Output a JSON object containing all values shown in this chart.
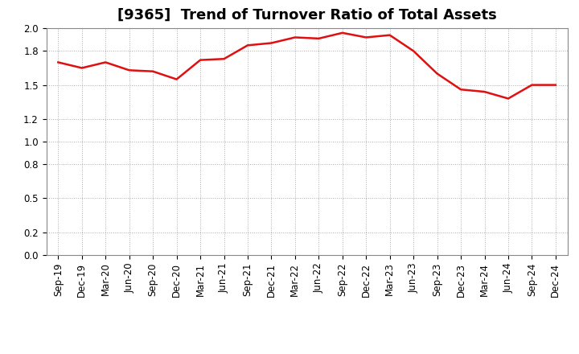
{
  "title": "[9365]  Trend of Turnover Ratio of Total Assets",
  "labels": [
    "Sep-19",
    "Dec-19",
    "Mar-20",
    "Jun-20",
    "Sep-20",
    "Dec-20",
    "Mar-21",
    "Jun-21",
    "Sep-21",
    "Dec-21",
    "Mar-22",
    "Jun-22",
    "Sep-22",
    "Dec-22",
    "Mar-23",
    "Jun-23",
    "Sep-23",
    "Dec-23",
    "Mar-24",
    "Jun-24",
    "Sep-24",
    "Dec-24"
  ],
  "values": [
    1.7,
    1.65,
    1.7,
    1.63,
    1.62,
    1.55,
    1.72,
    1.73,
    1.85,
    1.87,
    1.92,
    1.91,
    1.96,
    1.92,
    1.94,
    1.8,
    1.6,
    1.46,
    1.44,
    1.38,
    1.5,
    1.5
  ],
  "line_color": "#e01010",
  "line_width": 1.8,
  "ylim": [
    0.0,
    2.0
  ],
  "yticks": [
    0.0,
    0.2,
    0.5,
    0.8,
    1.0,
    1.2,
    1.5,
    1.8,
    2.0
  ],
  "grid_color": "#aaaaaa",
  "bg_color": "#ffffff",
  "title_fontsize": 13,
  "tick_fontsize": 8.5
}
